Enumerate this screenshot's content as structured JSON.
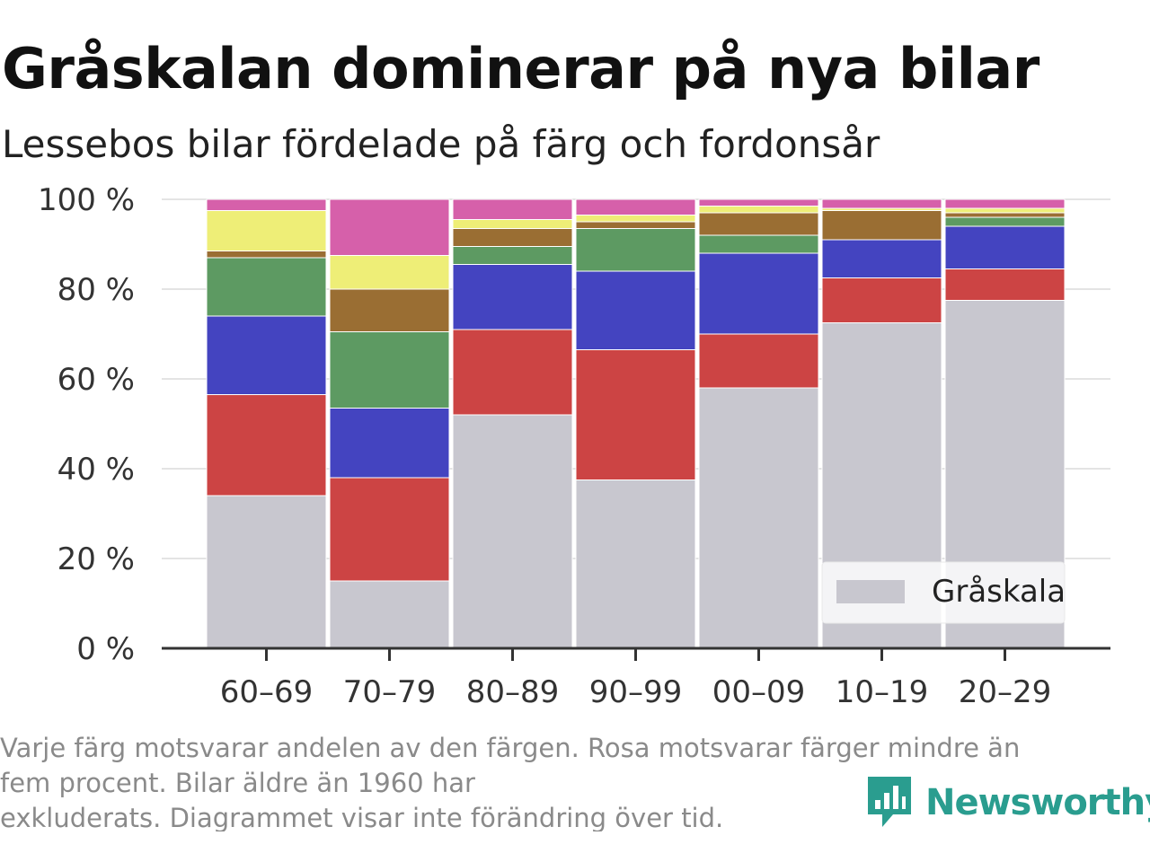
{
  "title": "Gråskalan dominerar på nya bilar",
  "subtitle": "Lessebos bilar fördelade på färg och fordonsår",
  "footnote": {
    "line1": "Varje färg motsvarar andelen av den färgen. Rosa motsvarar färger mindre än",
    "line2": "fem procent. Bilar äldre än 1960 har",
    "line3": "exkluderats. Diagrammet visar inte förändring över tid."
  },
  "brand": {
    "name": "Newsworthy",
    "icon": "newsworthy-logo-icon",
    "color": "#2a9d8f"
  },
  "chart_data": {
    "type": "bar",
    "stacked": true,
    "title": "Gråskalan dominerar på nya bilar",
    "subtitle": "Lessebos bilar fördelade på färg och fordonsår",
    "xlabel": "",
    "ylabel": "",
    "ylim": [
      0,
      100
    ],
    "y_ticks": [
      0,
      20,
      40,
      60,
      80,
      100
    ],
    "y_tick_labels": [
      "0 %",
      "20 %",
      "40 %",
      "60 %",
      "80 %",
      "100 %"
    ],
    "categories": [
      "60–69",
      "70–79",
      "80–89",
      "90–99",
      "00–09",
      "10–19",
      "20–29"
    ],
    "grid": true,
    "legend": {
      "placement": "bottom-right",
      "entries": [
        "Gråskala"
      ]
    },
    "series": [
      {
        "name": "Gråskala",
        "color": "#c8c7cf",
        "values": [
          34,
          15,
          52,
          37.5,
          58,
          72.5,
          77.5
        ]
      },
      {
        "color": "#cc4444",
        "values": [
          22.5,
          23,
          19,
          29,
          12,
          10,
          7
        ]
      },
      {
        "color": "#4444c0",
        "values": [
          17.5,
          15.5,
          14.5,
          17.5,
          18,
          8.5,
          9.5
        ]
      },
      {
        "color": "#5d9a62",
        "values": [
          13,
          17,
          4,
          9.5,
          4,
          0,
          2
        ]
      },
      {
        "color": "#9a6e33",
        "values": [
          1.5,
          9.5,
          4,
          1.5,
          5,
          6.5,
          1
        ]
      },
      {
        "color": "#eeee77",
        "values": [
          9,
          7.5,
          2,
          1.5,
          1.5,
          0.5,
          1
        ]
      },
      {
        "color": "#d660aa",
        "values": [
          2.5,
          12.5,
          4.5,
          3.5,
          1.5,
          2,
          2
        ]
      }
    ]
  }
}
